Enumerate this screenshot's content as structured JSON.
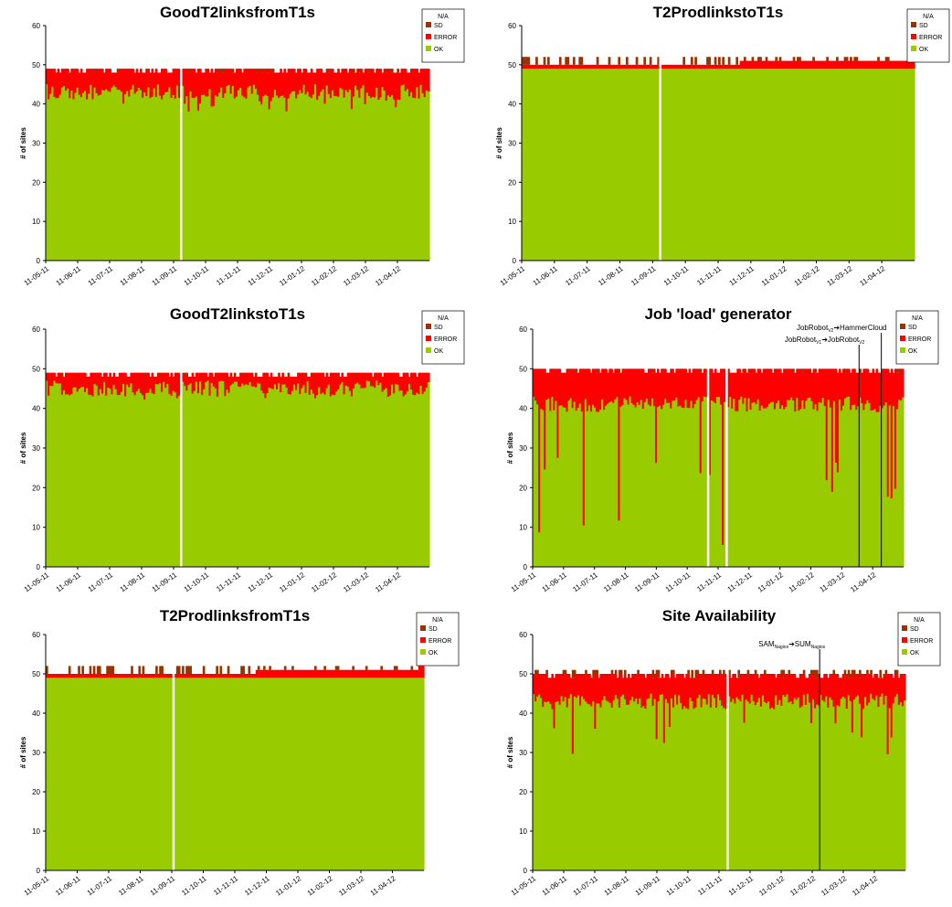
{
  "colors": {
    "ok": "#99cc00",
    "error": "#ff0000",
    "sd": "#993300",
    "gap": "#ffffff"
  },
  "y_axis_label": "# of sites",
  "y_ticks": [
    "0",
    "10",
    "20",
    "30",
    "40",
    "50",
    "60"
  ],
  "x_ticks": [
    "11-05-11",
    "11-06-11",
    "11-07-11",
    "11-08-11",
    "11-09-11",
    "11-10-11",
    "11-11-11",
    "11-12-11",
    "11-01-12",
    "11-02-12",
    "11-03-12",
    "11-04-12"
  ],
  "legend_header": "N/A",
  "legend": [
    "SD",
    "ERROR",
    "OK"
  ],
  "chart_data": [
    {
      "type": "area",
      "title": "GoodT2linksfromT1s",
      "ylabel": "# of sites",
      "ylim": [
        0,
        60
      ],
      "grid": false,
      "legend_position": "top-right",
      "x_range": [
        "11-05-11",
        "11-05-12"
      ],
      "series": [
        {
          "name": "OK",
          "typical": 45,
          "min": 38
        },
        {
          "name": "ERROR",
          "total_top": 49
        },
        {
          "name": "SD",
          "total_top": 49
        }
      ],
      "gaps": [
        {
          "date": "11-09-11"
        }
      ],
      "annotations": []
    },
    {
      "type": "area",
      "title": "T2ProdlinkstoT1s",
      "ylabel": "# of sites",
      "ylim": [
        0,
        60
      ],
      "grid": false,
      "legend_position": "top-right",
      "x_range": [
        "11-05-11",
        "11-05-12"
      ],
      "series": [
        {
          "name": "OK",
          "typical": 49,
          "min": 49
        },
        {
          "name": "ERROR",
          "total_top": 51
        },
        {
          "name": "SD",
          "total_top": 52
        }
      ],
      "gaps": [
        {
          "date": "11-09-11"
        }
      ],
      "annotations": []
    },
    {
      "type": "area",
      "title": "GoodT2linkstoT1s",
      "ylabel": "# of sites",
      "ylim": [
        0,
        60
      ],
      "grid": false,
      "legend_position": "top-right",
      "x_range": [
        "11-05-11",
        "11-05-12"
      ],
      "series": [
        {
          "name": "OK",
          "typical": 47,
          "min": 42
        },
        {
          "name": "ERROR",
          "total_top": 49
        },
        {
          "name": "SD",
          "total_top": 49
        }
      ],
      "gaps": [
        {
          "date": "11-09-11"
        }
      ],
      "annotations": []
    },
    {
      "type": "area",
      "title": "Job 'load' generator",
      "ylabel": "# of sites",
      "ylim": [
        0,
        60
      ],
      "grid": false,
      "legend_position": "top-right",
      "x_range": [
        "11-05-11",
        "11-05-12"
      ],
      "series": [
        {
          "name": "OK",
          "typical": 43,
          "min": 5
        },
        {
          "name": "ERROR",
          "total_top": 50
        },
        {
          "name": "SD",
          "total_top": 50
        }
      ],
      "gaps": [
        {
          "date": "11-11-11"
        },
        {
          "date": "11-11-11"
        }
      ],
      "annotations": [
        {
          "text": "JobRobot",
          "sub1": "V1",
          "arrow": "➔",
          "text2": "JobRobot",
          "sub2": "V2"
        },
        {
          "text": "JobRobot",
          "sub1": "V2",
          "arrow": "➔",
          "text2": "HammerCloud",
          "sub2": ""
        }
      ]
    },
    {
      "type": "area",
      "title": "T2ProdlinksfromT1s",
      "ylabel": "# of sites",
      "ylim": [
        0,
        60
      ],
      "grid": false,
      "legend_position": "top-right",
      "x_range": [
        "11-05-11",
        "11-05-12"
      ],
      "series": [
        {
          "name": "OK",
          "typical": 49,
          "min": 49
        },
        {
          "name": "ERROR",
          "total_top": 51
        },
        {
          "name": "SD",
          "total_top": 52
        }
      ],
      "gaps": [
        {
          "date": "11-09-11"
        }
      ],
      "annotations": []
    },
    {
      "type": "area",
      "title": "Site Availability",
      "ylabel": "# of sites",
      "ylim": [
        0,
        60
      ],
      "grid": false,
      "legend_position": "top-right",
      "x_range": [
        "11-05-11",
        "11-05-12"
      ],
      "series": [
        {
          "name": "OK",
          "typical": 45,
          "min": 29
        },
        {
          "name": "ERROR",
          "total_top": 50
        },
        {
          "name": "SD",
          "total_top": 51
        }
      ],
      "gaps": [
        {
          "date": "11-11-11"
        }
      ],
      "annotations": [
        {
          "text": "SAM",
          "sub1": "Nagios",
          "arrow": "➔",
          "text2": "SUM",
          "sub2": "Nagios"
        }
      ]
    }
  ]
}
